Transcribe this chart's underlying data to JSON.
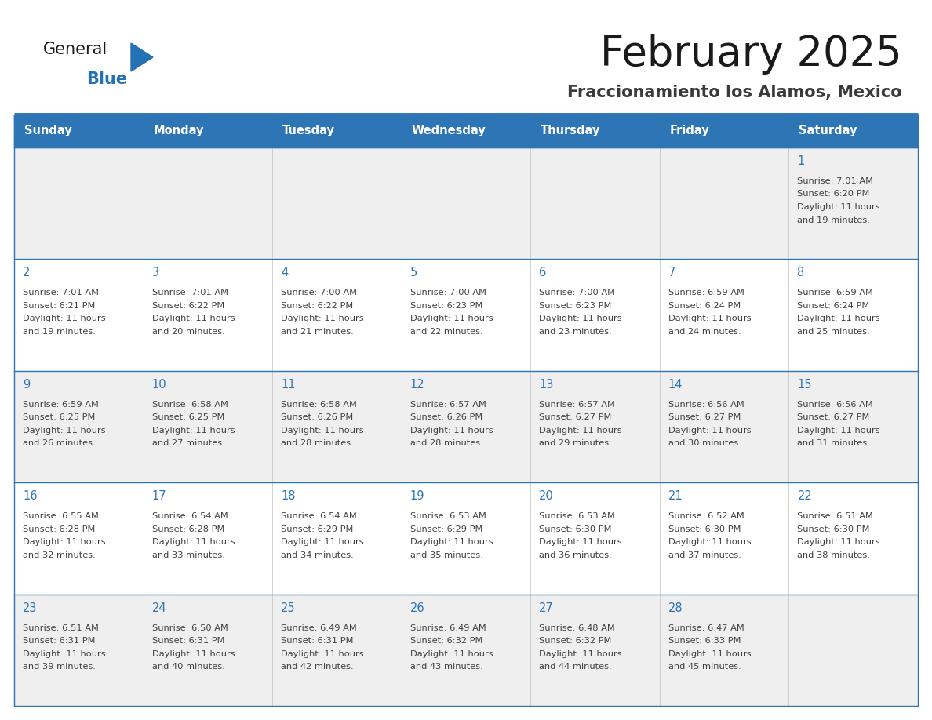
{
  "title": "February 2025",
  "subtitle": "Fraccionamiento los Alamos, Mexico",
  "header_bg": "#2E75B6",
  "header_text_color": "#FFFFFF",
  "row_bg_odd": "#EFEFEF",
  "row_bg_even": "#FFFFFF",
  "day_number_color": "#2E75B6",
  "info_text_color": "#404040",
  "title_color": "#1A1A1A",
  "subtitle_color": "#3A3A3A",
  "divider_color": "#2E75B6",
  "logo_general_color": "#1A1A1A",
  "logo_blue_color": "#2472B3",
  "logo_triangle_color": "#2472B3",
  "days_of_week": [
    "Sunday",
    "Monday",
    "Tuesday",
    "Wednesday",
    "Thursday",
    "Friday",
    "Saturday"
  ],
  "weeks": [
    [
      {
        "day": "",
        "sunrise": "",
        "sunset": "",
        "daylight": ""
      },
      {
        "day": "",
        "sunrise": "",
        "sunset": "",
        "daylight": ""
      },
      {
        "day": "",
        "sunrise": "",
        "sunset": "",
        "daylight": ""
      },
      {
        "day": "",
        "sunrise": "",
        "sunset": "",
        "daylight": ""
      },
      {
        "day": "",
        "sunrise": "",
        "sunset": "",
        "daylight": ""
      },
      {
        "day": "",
        "sunrise": "",
        "sunset": "",
        "daylight": ""
      },
      {
        "day": "1",
        "sunrise": "7:01 AM",
        "sunset": "6:20 PM",
        "daylight_l1": "Daylight: 11 hours",
        "daylight_l2": "and 19 minutes."
      }
    ],
    [
      {
        "day": "2",
        "sunrise": "7:01 AM",
        "sunset": "6:21 PM",
        "daylight_l1": "Daylight: 11 hours",
        "daylight_l2": "and 19 minutes."
      },
      {
        "day": "3",
        "sunrise": "7:01 AM",
        "sunset": "6:22 PM",
        "daylight_l1": "Daylight: 11 hours",
        "daylight_l2": "and 20 minutes."
      },
      {
        "day": "4",
        "sunrise": "7:00 AM",
        "sunset": "6:22 PM",
        "daylight_l1": "Daylight: 11 hours",
        "daylight_l2": "and 21 minutes."
      },
      {
        "day": "5",
        "sunrise": "7:00 AM",
        "sunset": "6:23 PM",
        "daylight_l1": "Daylight: 11 hours",
        "daylight_l2": "and 22 minutes."
      },
      {
        "day": "6",
        "sunrise": "7:00 AM",
        "sunset": "6:23 PM",
        "daylight_l1": "Daylight: 11 hours",
        "daylight_l2": "and 23 minutes."
      },
      {
        "day": "7",
        "sunrise": "6:59 AM",
        "sunset": "6:24 PM",
        "daylight_l1": "Daylight: 11 hours",
        "daylight_l2": "and 24 minutes."
      },
      {
        "day": "8",
        "sunrise": "6:59 AM",
        "sunset": "6:24 PM",
        "daylight_l1": "Daylight: 11 hours",
        "daylight_l2": "and 25 minutes."
      }
    ],
    [
      {
        "day": "9",
        "sunrise": "6:59 AM",
        "sunset": "6:25 PM",
        "daylight_l1": "Daylight: 11 hours",
        "daylight_l2": "and 26 minutes."
      },
      {
        "day": "10",
        "sunrise": "6:58 AM",
        "sunset": "6:25 PM",
        "daylight_l1": "Daylight: 11 hours",
        "daylight_l2": "and 27 minutes."
      },
      {
        "day": "11",
        "sunrise": "6:58 AM",
        "sunset": "6:26 PM",
        "daylight_l1": "Daylight: 11 hours",
        "daylight_l2": "and 28 minutes."
      },
      {
        "day": "12",
        "sunrise": "6:57 AM",
        "sunset": "6:26 PM",
        "daylight_l1": "Daylight: 11 hours",
        "daylight_l2": "and 28 minutes."
      },
      {
        "day": "13",
        "sunrise": "6:57 AM",
        "sunset": "6:27 PM",
        "daylight_l1": "Daylight: 11 hours",
        "daylight_l2": "and 29 minutes."
      },
      {
        "day": "14",
        "sunrise": "6:56 AM",
        "sunset": "6:27 PM",
        "daylight_l1": "Daylight: 11 hours",
        "daylight_l2": "and 30 minutes."
      },
      {
        "day": "15",
        "sunrise": "6:56 AM",
        "sunset": "6:27 PM",
        "daylight_l1": "Daylight: 11 hours",
        "daylight_l2": "and 31 minutes."
      }
    ],
    [
      {
        "day": "16",
        "sunrise": "6:55 AM",
        "sunset": "6:28 PM",
        "daylight_l1": "Daylight: 11 hours",
        "daylight_l2": "and 32 minutes."
      },
      {
        "day": "17",
        "sunrise": "6:54 AM",
        "sunset": "6:28 PM",
        "daylight_l1": "Daylight: 11 hours",
        "daylight_l2": "and 33 minutes."
      },
      {
        "day": "18",
        "sunrise": "6:54 AM",
        "sunset": "6:29 PM",
        "daylight_l1": "Daylight: 11 hours",
        "daylight_l2": "and 34 minutes."
      },
      {
        "day": "19",
        "sunrise": "6:53 AM",
        "sunset": "6:29 PM",
        "daylight_l1": "Daylight: 11 hours",
        "daylight_l2": "and 35 minutes."
      },
      {
        "day": "20",
        "sunrise": "6:53 AM",
        "sunset": "6:30 PM",
        "daylight_l1": "Daylight: 11 hours",
        "daylight_l2": "and 36 minutes."
      },
      {
        "day": "21",
        "sunrise": "6:52 AM",
        "sunset": "6:30 PM",
        "daylight_l1": "Daylight: 11 hours",
        "daylight_l2": "and 37 minutes."
      },
      {
        "day": "22",
        "sunrise": "6:51 AM",
        "sunset": "6:30 PM",
        "daylight_l1": "Daylight: 11 hours",
        "daylight_l2": "and 38 minutes."
      }
    ],
    [
      {
        "day": "23",
        "sunrise": "6:51 AM",
        "sunset": "6:31 PM",
        "daylight_l1": "Daylight: 11 hours",
        "daylight_l2": "and 39 minutes."
      },
      {
        "day": "24",
        "sunrise": "6:50 AM",
        "sunset": "6:31 PM",
        "daylight_l1": "Daylight: 11 hours",
        "daylight_l2": "and 40 minutes."
      },
      {
        "day": "25",
        "sunrise": "6:49 AM",
        "sunset": "6:31 PM",
        "daylight_l1": "Daylight: 11 hours",
        "daylight_l2": "and 42 minutes."
      },
      {
        "day": "26",
        "sunrise": "6:49 AM",
        "sunset": "6:32 PM",
        "daylight_l1": "Daylight: 11 hours",
        "daylight_l2": "and 43 minutes."
      },
      {
        "day": "27",
        "sunrise": "6:48 AM",
        "sunset": "6:32 PM",
        "daylight_l1": "Daylight: 11 hours",
        "daylight_l2": "and 44 minutes."
      },
      {
        "day": "28",
        "sunrise": "6:47 AM",
        "sunset": "6:33 PM",
        "daylight_l1": "Daylight: 11 hours",
        "daylight_l2": "and 45 minutes."
      },
      {
        "day": "",
        "sunrise": "",
        "sunset": "",
        "daylight_l1": "",
        "daylight_l2": ""
      }
    ]
  ]
}
